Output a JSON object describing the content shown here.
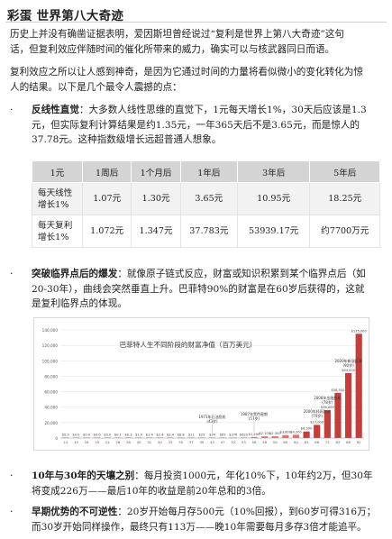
{
  "header": {
    "title": "彩蛋 世界第八大奇迹"
  },
  "intro": {
    "p1_line1": "历史上并没有确凿证据表明，爱因斯坦曾经说过“复利是世界上第八大奇迹”这句",
    "p1_line2": "话，但复利效应伴随时间的催化所带来的威力，确实可以与核武器同日而语。",
    "p2_line1": "复利效应之所以让人感到神奇，是因为它通过时间的力量将看似微小的变化转化为惊",
    "p2_line2": "人的结果。以下是几个最令人震撼的点："
  },
  "bullets": [
    {
      "marker": "·",
      "bold": "反线性直觉",
      "line1": "：大多数人线性思维的直觉下，1元每天增长1%，30天后应该是1.3",
      "line2": "元，但实际复利计算结果是约1.35元，一年365天后不是3.65元，而是惊人的",
      "line3": "37.78元。这种指数级增长远超普通人想象。"
    },
    {
      "marker": "·",
      "bold": "突破临界点后的爆发",
      "line1": "：就像原子链式反应，财富或知识积累到某个临界点后（如",
      "line2": "20-30年），曲线会突然垂直上升。巴菲特90%的财富是在60岁后获得的，这就",
      "line3": "是复利临界点的体现。"
    },
    {
      "marker": "·",
      "bold": "10年与30年的天壤之别",
      "line1": "：每月投资1000元，年化10%下，10年约2万，但30年",
      "line2": "将变成226万——最后10年的收益是前20年总和的3倍。"
    },
    {
      "marker": "·",
      "bold": "早期优势的不可逆性",
      "line1": "：20岁开始每月存500元（10%回报），到60岁可得316万；",
      "line2": "而30岁开始同样操作，最终只有113万——晚10年需要每月多存3倍才能追平。"
    }
  ],
  "table": {
    "headers": [
      "1元",
      "1周后",
      "1个月后",
      "1年后",
      "3年后",
      "5年后"
    ],
    "rows": [
      {
        "label_l1": "每天线性",
        "label_l2": "增长1%",
        "cells": [
          "1.07元",
          "1.30元",
          "3.65元",
          "10.95元",
          "18.25元"
        ]
      },
      {
        "label_l1": "每天复利",
        "label_l2": "增长1%",
        "cells": [
          "1.072元",
          "1.347元",
          "37.783元",
          "53939.17元",
          "约7700万元"
        ]
      }
    ]
  },
  "chart_data": {
    "type": "bar",
    "title": "巴菲特人生不同阶段的财富净值（百万美元）",
    "xlabel": "",
    "ylabel": "",
    "ylim": [
      0,
      140000
    ],
    "yticks": [
      "0",
      "20,000",
      "40,000",
      "60,000",
      "80,000",
      "100,000",
      "120,000",
      "140,000"
    ],
    "categories": [
      "14",
      "15",
      "16",
      "19",
      "21",
      "26",
      "28",
      "30",
      "31",
      "32",
      "33",
      "35",
      "37",
      "39",
      "43",
      "47",
      "52",
      "53",
      "56",
      "58",
      "59",
      "60",
      "62",
      "63",
      "66",
      "72",
      "83",
      "88",
      "92"
    ],
    "values": [
      0.005,
      0.006,
      0.01,
      0.02,
      0.02,
      0.14,
      0.3,
      1,
      1.4,
      2.4,
      3.4,
      6.8,
      11,
      25,
      34,
      67,
      376,
      620,
      1400,
      2100,
      2300,
      3800,
      4200,
      8500,
      17000,
      36000,
      58500,
      84000,
      135000
    ],
    "value_labels": [
      "$0.0",
      "$0.0",
      "$0.0",
      "$0.0",
      "$0.0",
      "$0.1",
      "$0.3",
      "$1.0",
      "$1.4",
      "$2.4",
      "$3.4",
      "$6.8",
      "$11",
      "$25",
      "$34",
      "$67",
      "$376",
      "$620",
      "$1,400",
      "$2,100",
      "$2,300",
      "$3,800",
      "$4,200",
      "$8,500",
      "$17,000",
      "$36,000",
      "$58,500",
      "$84,000",
      "$135,000"
    ],
    "annotations": [
      {
        "text": "1973年石油危机",
        "sub": "(43岁)",
        "category": "43"
      },
      {
        "text": "1987年黑色星期",
        "sub": "(57岁)",
        "category": "56"
      },
      {
        "text": "2000年科网泡沫",
        "sub": "(70岁)",
        "category": "66"
      },
      {
        "text": "2008年金融危机",
        "sub": "(78岁)",
        "category": "72"
      },
      {
        "text": "2020年新冠疫情",
        "sub": "(90岁)",
        "category": "88"
      }
    ],
    "colors": {
      "bar": "#c0413c",
      "bar_light": "#d9756f",
      "grid": "#e6e6e6",
      "axis_text": "#555555",
      "title": "#333333"
    },
    "grid": true
  }
}
